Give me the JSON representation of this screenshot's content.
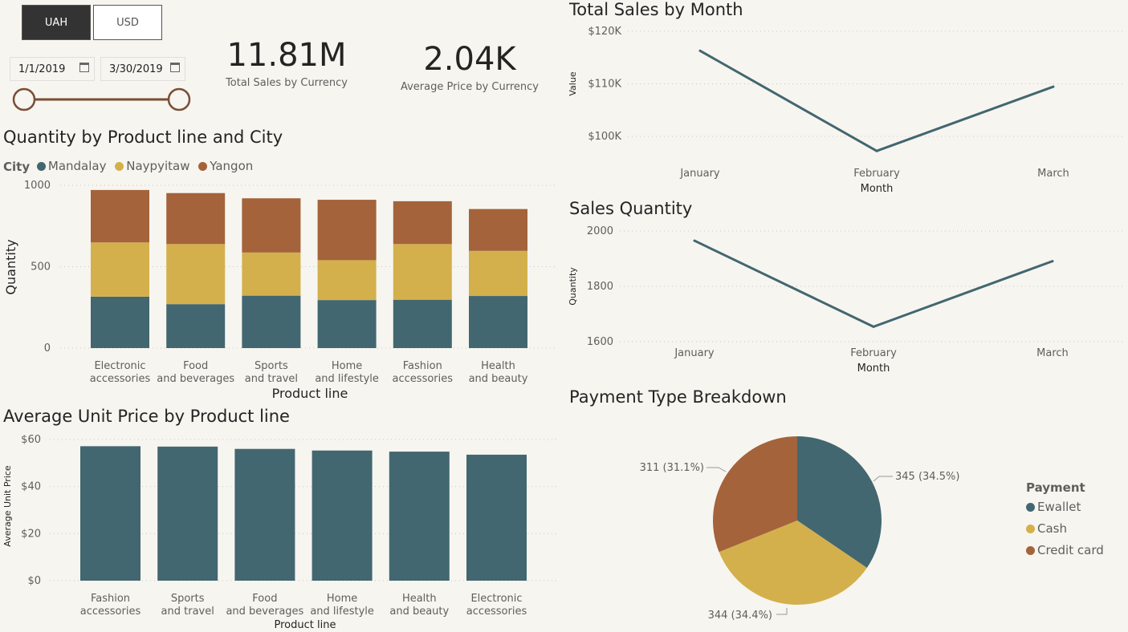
{
  "colors": {
    "teal": "#426770",
    "gold": "#d3b04c",
    "rust": "#a4633a",
    "bg": "#f7f5f0",
    "slider": "#7a4e35"
  },
  "currency_buttons": [
    "UAH",
    "USD"
  ],
  "dates": {
    "start": "1/1/2019",
    "end": "3/30/2019",
    "range_fraction": [
      0,
      1
    ]
  },
  "kpis": [
    {
      "value": "11.81M",
      "label": "Total Sales by Currency"
    },
    {
      "value": "2.04K",
      "label": "Average Price by Currency"
    }
  ],
  "qty_chart": {
    "title": "Quantity by Product line and City",
    "legend_title": "City",
    "xlabel": "Product line",
    "ylabel": "Quantity"
  },
  "price_chart": {
    "title": "Average Unit Price by Product line",
    "xlabel": "Product line",
    "ylabel": "Average Unit Price"
  },
  "sales_chart": {
    "title": "Total Sales by Month",
    "xlabel": "Month",
    "ylabel": "Value"
  },
  "qtym_chart": {
    "title": "Sales Quantity",
    "xlabel": "Month",
    "ylabel": "Quantity"
  },
  "pie_chart": {
    "title": "Payment Type Breakdown",
    "legend_title": "Payment"
  },
  "chart_data": [
    {
      "type": "bar",
      "stacked": true,
      "title": "Quantity by Product line and City",
      "xlabel": "Product line",
      "ylabel": "Quantity",
      "categories": [
        "Electronic accessories",
        "Food and beverages",
        "Sports and travel",
        "Home and lifestyle",
        "Fashion accessories",
        "Health and beauty"
      ],
      "series": [
        {
          "name": "Mandalay",
          "values": [
            316,
            270,
            322,
            295,
            297,
            320
          ]
        },
        {
          "name": "Naypyitaw",
          "values": [
            333,
            369,
            265,
            245,
            342,
            277
          ]
        },
        {
          "name": "Yangon",
          "values": [
            322,
            313,
            333,
            371,
            263,
            257
          ]
        }
      ],
      "yticks": [
        "0",
        "500",
        "1000"
      ],
      "ylim": [
        0,
        1000
      ],
      "legend": "top-left",
      "grid": true
    },
    {
      "type": "bar",
      "title": "Average Unit Price by Product line",
      "xlabel": "Product line",
      "ylabel": "Average Unit Price",
      "categories": [
        "Fashion accessories",
        "Sports and travel",
        "Food and beverages",
        "Home and lifestyle",
        "Health and beauty",
        "Electronic accessories"
      ],
      "values": [
        57.15,
        56.99,
        56.01,
        55.32,
        54.85,
        53.55
      ],
      "yticks": [
        "$0",
        "$20",
        "$40",
        "$60"
      ],
      "ylim": [
        0,
        60
      ],
      "grid": true
    },
    {
      "type": "line",
      "title": "Total Sales by Month",
      "xlabel": "Month",
      "ylabel": "Value",
      "x": [
        "January",
        "February",
        "March"
      ],
      "values": [
        116292,
        97219,
        109456
      ],
      "yticks": [
        "$100K",
        "$110K",
        "$120K"
      ],
      "ylim": [
        100000,
        120000
      ],
      "grid": true
    },
    {
      "type": "line",
      "title": "Sales Quantity",
      "xlabel": "Month",
      "ylabel": "Quantity",
      "x": [
        "January",
        "February",
        "March"
      ],
      "values": [
        1965,
        1654,
        1891
      ],
      "yticks": [
        "1600",
        "1800",
        "2000"
      ],
      "ylim": [
        1600,
        2000
      ],
      "grid": true
    },
    {
      "type": "pie",
      "title": "Payment Type Breakdown",
      "legend_title": "Payment",
      "legend": "right",
      "slices": [
        {
          "name": "Ewallet",
          "value": 345,
          "label": "345 (34.5%)"
        },
        {
          "name": "Cash",
          "value": 344,
          "label": "344 (34.4%)"
        },
        {
          "name": "Credit card",
          "value": 311,
          "label": "311 (31.1%)"
        }
      ]
    }
  ]
}
